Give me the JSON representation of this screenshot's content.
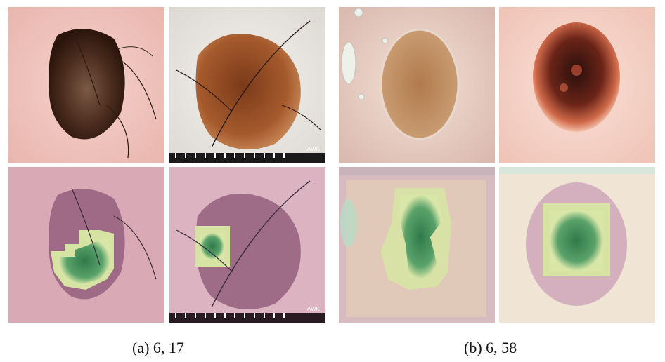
{
  "panels": [
    {
      "caption": "(a) 6, 17"
    },
    {
      "caption": "(b) 6, 58"
    }
  ],
  "watermark": "AWK",
  "colors": {
    "skin_light": "#f2c9c2",
    "lesion_dark": "#3a1f14",
    "lesion_brown": "#8a4a22",
    "overlay_tint": "#d9a6b8",
    "heat_green": "#3f8a57"
  }
}
